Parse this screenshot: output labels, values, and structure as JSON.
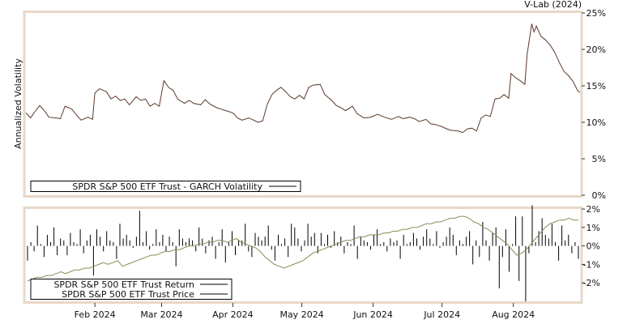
{
  "chart_data": [
    {
      "type": "line",
      "source_label": "V-Lab (2024)",
      "ylabel": "Annualized Volatility",
      "ylim": [
        0,
        25
      ],
      "y_ticks": [
        "0%",
        "5%",
        "10%",
        "15%",
        "20%",
        "25%"
      ],
      "x_ticks": [
        "Feb 2024",
        "Mar 2024",
        "Apr 2024",
        "May 2024",
        "Jun 2024",
        "Jul 2024",
        "Aug 2024"
      ],
      "x_start": "2024-01-02",
      "x_end": "2024-08-30",
      "legend": [
        "SPDR S&P 500 ETF Trust - GARCH Volatility"
      ],
      "legend_position": "bottom-left",
      "grid": false,
      "series": [
        {
          "name": "SPDR S&P 500 ETF Trust - GARCH Volatility",
          "color": "#5a3a2a",
          "points": [
            [
              "2024-01-02",
              11.3
            ],
            [
              "2024-01-04",
              10.6
            ],
            [
              "2024-01-06",
              11.5
            ],
            [
              "2024-01-08",
              12.3
            ],
            [
              "2024-01-10",
              11.6
            ],
            [
              "2024-01-12",
              10.7
            ],
            [
              "2024-01-15",
              10.6
            ],
            [
              "2024-01-17",
              10.5
            ],
            [
              "2024-01-19",
              12.2
            ],
            [
              "2024-01-22",
              11.8
            ],
            [
              "2024-01-24",
              11.0
            ],
            [
              "2024-01-26",
              10.3
            ],
            [
              "2024-01-29",
              10.7
            ],
            [
              "2024-01-31",
              10.4
            ],
            [
              "2024-02-01",
              14.0
            ],
            [
              "2024-02-03",
              14.6
            ],
            [
              "2024-02-06",
              14.2
            ],
            [
              "2024-02-08",
              13.2
            ],
            [
              "2024-02-10",
              13.6
            ],
            [
              "2024-02-12",
              13.0
            ],
            [
              "2024-02-14",
              13.2
            ],
            [
              "2024-02-16",
              12.4
            ],
            [
              "2024-02-19",
              13.5
            ],
            [
              "2024-02-21",
              13.0
            ],
            [
              "2024-02-23",
              13.2
            ],
            [
              "2024-02-25",
              12.2
            ],
            [
              "2024-02-27",
              12.6
            ],
            [
              "2024-02-29",
              12.2
            ],
            [
              "2024-03-02",
              15.7
            ],
            [
              "2024-03-04",
              14.8
            ],
            [
              "2024-03-06",
              14.4
            ],
            [
              "2024-03-08",
              13.2
            ],
            [
              "2024-03-11",
              12.6
            ],
            [
              "2024-03-13",
              13.0
            ],
            [
              "2024-03-15",
              12.6
            ],
            [
              "2024-03-18",
              12.4
            ],
            [
              "2024-03-20",
              13.1
            ],
            [
              "2024-03-22",
              12.5
            ],
            [
              "2024-03-25",
              12.0
            ],
            [
              "2024-03-27",
              11.8
            ],
            [
              "2024-03-29",
              11.6
            ],
            [
              "2024-04-01",
              11.3
            ],
            [
              "2024-04-03",
              10.6
            ],
            [
              "2024-04-05",
              10.3
            ],
            [
              "2024-04-08",
              10.6
            ],
            [
              "2024-04-10",
              10.3
            ],
            [
              "2024-04-12",
              10.0
            ],
            [
              "2024-04-14",
              10.2
            ],
            [
              "2024-04-16",
              12.5
            ],
            [
              "2024-04-18",
              13.8
            ],
            [
              "2024-04-20",
              14.4
            ],
            [
              "2024-04-22",
              14.8
            ],
            [
              "2024-04-24",
              14.2
            ],
            [
              "2024-04-26",
              13.5
            ],
            [
              "2024-04-28",
              13.2
            ],
            [
              "2024-04-30",
              13.7
            ],
            [
              "2024-05-02",
              13.2
            ],
            [
              "2024-05-04",
              14.8
            ],
            [
              "2024-05-06",
              15.1
            ],
            [
              "2024-05-09",
              15.2
            ],
            [
              "2024-05-11",
              13.8
            ],
            [
              "2024-05-14",
              13.0
            ],
            [
              "2024-05-16",
              12.3
            ],
            [
              "2024-05-18",
              12.0
            ],
            [
              "2024-05-20",
              11.6
            ],
            [
              "2024-05-23",
              12.2
            ],
            [
              "2024-05-25",
              11.2
            ],
            [
              "2024-05-28",
              10.6
            ],
            [
              "2024-05-31",
              10.7
            ],
            [
              "2024-06-03",
              11.1
            ],
            [
              "2024-06-06",
              10.7
            ],
            [
              "2024-06-09",
              10.4
            ],
            [
              "2024-06-12",
              10.8
            ],
            [
              "2024-06-14",
              10.5
            ],
            [
              "2024-06-17",
              10.7
            ],
            [
              "2024-06-19",
              10.5
            ],
            [
              "2024-06-21",
              10.1
            ],
            [
              "2024-06-24",
              10.4
            ],
            [
              "2024-06-26",
              9.8
            ],
            [
              "2024-06-28",
              9.7
            ],
            [
              "2024-07-01",
              9.4
            ],
            [
              "2024-07-03",
              9.1
            ],
            [
              "2024-07-05",
              8.9
            ],
            [
              "2024-07-08",
              8.8
            ],
            [
              "2024-07-10",
              8.6
            ],
            [
              "2024-07-12",
              9.1
            ],
            [
              "2024-07-14",
              9.2
            ],
            [
              "2024-07-16",
              8.8
            ],
            [
              "2024-07-18",
              10.6
            ],
            [
              "2024-07-20",
              11.0
            ],
            [
              "2024-07-22",
              10.8
            ],
            [
              "2024-07-24",
              13.2
            ],
            [
              "2024-07-26",
              13.3
            ],
            [
              "2024-07-28",
              13.8
            ],
            [
              "2024-07-30",
              13.3
            ],
            [
              "2024-07-31",
              16.7
            ],
            [
              "2024-08-02",
              16.1
            ],
            [
              "2024-08-04",
              15.7
            ],
            [
              "2024-08-06",
              15.2
            ],
            [
              "2024-08-07",
              19.3
            ],
            [
              "2024-08-09",
              23.5
            ],
            [
              "2024-08-10",
              22.4
            ],
            [
              "2024-08-11",
              23.2
            ],
            [
              "2024-08-13",
              21.8
            ],
            [
              "2024-08-15",
              21.3
            ],
            [
              "2024-08-17",
              20.6
            ],
            [
              "2024-08-19",
              19.6
            ],
            [
              "2024-08-21",
              18.2
            ],
            [
              "2024-08-23",
              17.0
            ],
            [
              "2024-08-25",
              16.4
            ],
            [
              "2024-08-27",
              15.6
            ],
            [
              "2024-08-29",
              14.3
            ],
            [
              "2024-08-30",
              14.1
            ]
          ]
        }
      ]
    },
    {
      "type": "bar",
      "ylim": [
        -3.0,
        2.0
      ],
      "y_ticks": [
        "2%",
        "1%",
        "0%",
        "-1%",
        "-2%"
      ],
      "x_ticks": [
        "Feb 2024",
        "Mar 2024",
        "Apr 2024",
        "May 2024",
        "Jun 2024",
        "Jul 2024",
        "Aug 2024"
      ],
      "legend": [
        "SPDR S&P 500 ETF Trust Return",
        "SPDR S&P 500 ETF Trust Price"
      ],
      "legend_position": "bottom-left",
      "grid": false,
      "series": [
        {
          "name": "SPDR S&P 500 ETF Trust Return",
          "type": "bar",
          "color": "#000000",
          "values": [
            -0.8,
            0.2,
            -0.3,
            1.1,
            0.1,
            -0.6,
            0.6,
            0.2,
            1.0,
            -0.5,
            0.4,
            0.3,
            -0.5,
            0.7,
            0.2,
            0.1,
            0.9,
            -0.4,
            0.3,
            0.6,
            -1.6,
            0.9,
            0.5,
            -0.3,
            0.8,
            0.3,
            0.2,
            -0.7,
            1.2,
            0.4,
            0.6,
            0.3,
            -0.1,
            0.5,
            1.9,
            0.2,
            0.8,
            -0.2,
            0.1,
            0.9,
            0.2,
            0.6,
            -0.3,
            0.5,
            0.2,
            -1.1,
            0.9,
            0.4,
            0.2,
            0.4,
            0.3,
            -0.3,
            1.0,
            0.4,
            -0.4,
            0.3,
            0.5,
            -0.7,
            0.2,
            0.9,
            -0.9,
            0.2,
            0.8,
            -0.5,
            0.3,
            0.3,
            1.2,
            -0.3,
            -0.6,
            0.7,
            0.5,
            0.3,
            0.5,
            1.1,
            -0.2,
            -0.8,
            0.6,
            0.1,
            0.4,
            -0.6,
            1.2,
            1.0,
            0.4,
            -0.3,
            0.3,
            1.2,
            0.5,
            0.7,
            -0.4,
            0.7,
            0.1,
            0.6,
            -0.1,
            0.8,
            0.2,
            0.5,
            -0.4,
            0.2,
            0.1,
            1.1,
            -0.7,
            0.5,
            0.3,
            0.2,
            -0.2,
            0.6,
            0.9,
            0.1,
            0.2,
            -0.3,
            0.4,
            0.2,
            0.3,
            -0.7,
            0.6,
            0.1,
            0.2,
            0.7,
            0.4,
            -0.2,
            0.5,
            0.9,
            0.4,
            0.1,
            0.8,
            -0.1,
            0.2,
            0.5,
            1.0,
            0.6,
            -0.5,
            0.3,
            0.1,
            0.5,
            0.8,
            -1.0,
            0.3,
            -0.6,
            1.3,
            0.3,
            -0.8,
            0.7,
            1.0,
            -2.3,
            -0.6,
            0.9,
            -1.4,
            0.1,
            1.6,
            -1.9,
            1.6,
            -3.0,
            -0.4,
            2.2,
            0.2,
            0.8,
            1.5,
            0.6,
            0.4,
            1.2,
            0.2,
            -0.8,
            1.1,
            0.3,
            0.6,
            -0.4,
            0.2,
            -0.7
          ]
        },
        {
          "name": "SPDR S&P 500 ETF Trust Price",
          "type": "line",
          "color": "#8b8b5a",
          "values": [
            -1.9,
            -1.8,
            -1.7,
            -1.7,
            -1.6,
            -1.6,
            -1.5,
            -1.4,
            -1.5,
            -1.4,
            -1.3,
            -1.3,
            -1.2,
            -1.2,
            -1.1,
            -1.0,
            -0.9,
            -1.0,
            -0.9,
            -0.8,
            -1.1,
            -1.0,
            -0.9,
            -0.8,
            -0.7,
            -0.6,
            -0.5,
            -0.5,
            -0.4,
            -0.3,
            -0.3,
            -0.2,
            -0.2,
            -0.1,
            0.0,
            0.0,
            0.1,
            0.1,
            0.2,
            0.2,
            0.3,
            0.3,
            0.2,
            0.3,
            0.4,
            0.2,
            0.1,
            0.0,
            -0.1,
            -0.3,
            -0.6,
            -0.8,
            -1.0,
            -1.1,
            -1.2,
            -1.1,
            -1.0,
            -0.9,
            -0.8,
            -0.6,
            -0.4,
            -0.3,
            -0.2,
            -0.1,
            0.0,
            0.1,
            0.2,
            0.3,
            0.3,
            0.4,
            0.5,
            0.5,
            0.6,
            0.6,
            0.6,
            0.7,
            0.7,
            0.8,
            0.8,
            0.9,
            0.9,
            1.0,
            1.0,
            1.1,
            1.2,
            1.2,
            1.3,
            1.3,
            1.4,
            1.5,
            1.5,
            1.6,
            1.6,
            1.5,
            1.3,
            1.2,
            1.0,
            0.9,
            0.7,
            0.5,
            0.3,
            0.1,
            -0.2,
            -0.5,
            -0.4,
            -0.2,
            0.1,
            0.4,
            0.7,
            1.0,
            1.2,
            1.3,
            1.4,
            1.4,
            1.5,
            1.4,
            1.4
          ]
        }
      ]
    }
  ]
}
